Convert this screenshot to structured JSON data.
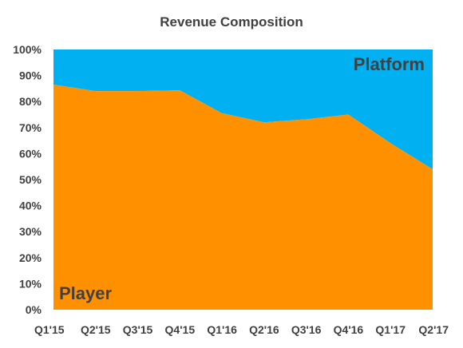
{
  "chart_data": {
    "type": "area",
    "stacked": "percent",
    "title": "Revenue Composition",
    "categories": [
      "Q1'15",
      "Q2'15",
      "Q3'15",
      "Q4'15",
      "Q1'16",
      "Q2'16",
      "Q3'16",
      "Q4'16",
      "Q1'17",
      "Q2'17"
    ],
    "series": [
      {
        "name": "Player",
        "values": [
          86.5,
          84,
          84,
          84.3,
          75.5,
          72,
          73.2,
          75,
          64,
          54
        ],
        "color": "#FF9100"
      },
      {
        "name": "Platform",
        "values": [
          13.5,
          16,
          16,
          15.7,
          24.5,
          28,
          26.8,
          25,
          36,
          46
        ],
        "color": "#00B0F0"
      }
    ],
    "ylim": [
      0,
      100
    ],
    "yticks": [
      "0%",
      "10%",
      "20%",
      "30%",
      "40%",
      "50%",
      "60%",
      "70%",
      "80%",
      "90%",
      "100%"
    ],
    "ylabel": "",
    "xlabel": "",
    "grid": false,
    "legend": "inline labels"
  }
}
